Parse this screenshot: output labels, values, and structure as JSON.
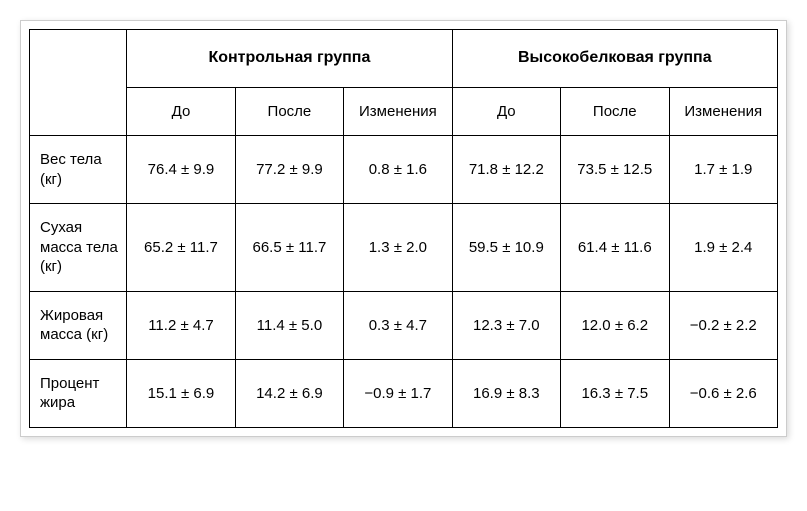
{
  "type": "table",
  "background_color": "#ffffff",
  "border_color": "#000000",
  "shadow_color": "rgba(0,0,0,0.15)",
  "font_family": "Arial",
  "cell_fontsize": 15,
  "header_fontsize": 16,
  "text_color": "#000000",
  "groups": [
    {
      "label": "Контрольная группа"
    },
    {
      "label": "Высокобелковая группа"
    }
  ],
  "sub_columns": {
    "before": "До",
    "after": "После",
    "change": "Изменения"
  },
  "rows": [
    {
      "label": "Вес тела (кг)",
      "g1_before": "76.4 ± 9.9",
      "g1_after": "77.2 ± 9.9",
      "g1_change": "0.8 ± 1.6",
      "g2_before": "71.8 ± 12.2",
      "g2_after": "73.5 ± 12.5",
      "g2_change": "1.7 ± 1.9"
    },
    {
      "label": "Сухая масса тела (кг)",
      "g1_before": "65.2 ± 11.7",
      "g1_after": "66.5 ± 11.7",
      "g1_change": "1.3 ± 2.0",
      "g2_before": "59.5 ± 10.9",
      "g2_after": "61.4 ± 11.6",
      "g2_change": "1.9 ± 2.4"
    },
    {
      "label": "Жировая масса (кг)",
      "g1_before": "11.2 ± 4.7",
      "g1_after": "11.4 ± 5.0",
      "g1_change": "0.3 ± 4.7",
      "g2_before": "12.3 ± 7.0",
      "g2_after": "12.0 ± 6.2",
      "g2_change": "−0.2 ± 2.2"
    },
    {
      "label": "Процент жира",
      "g1_before": "15.1 ± 6.9",
      "g1_after": "14.2 ± 6.9",
      "g1_change": "−0.9 ± 1.7",
      "g2_before": "16.9 ± 8.3",
      "g2_after": "16.3 ± 7.5",
      "g2_change": "−0.6 ± 2.6"
    }
  ]
}
